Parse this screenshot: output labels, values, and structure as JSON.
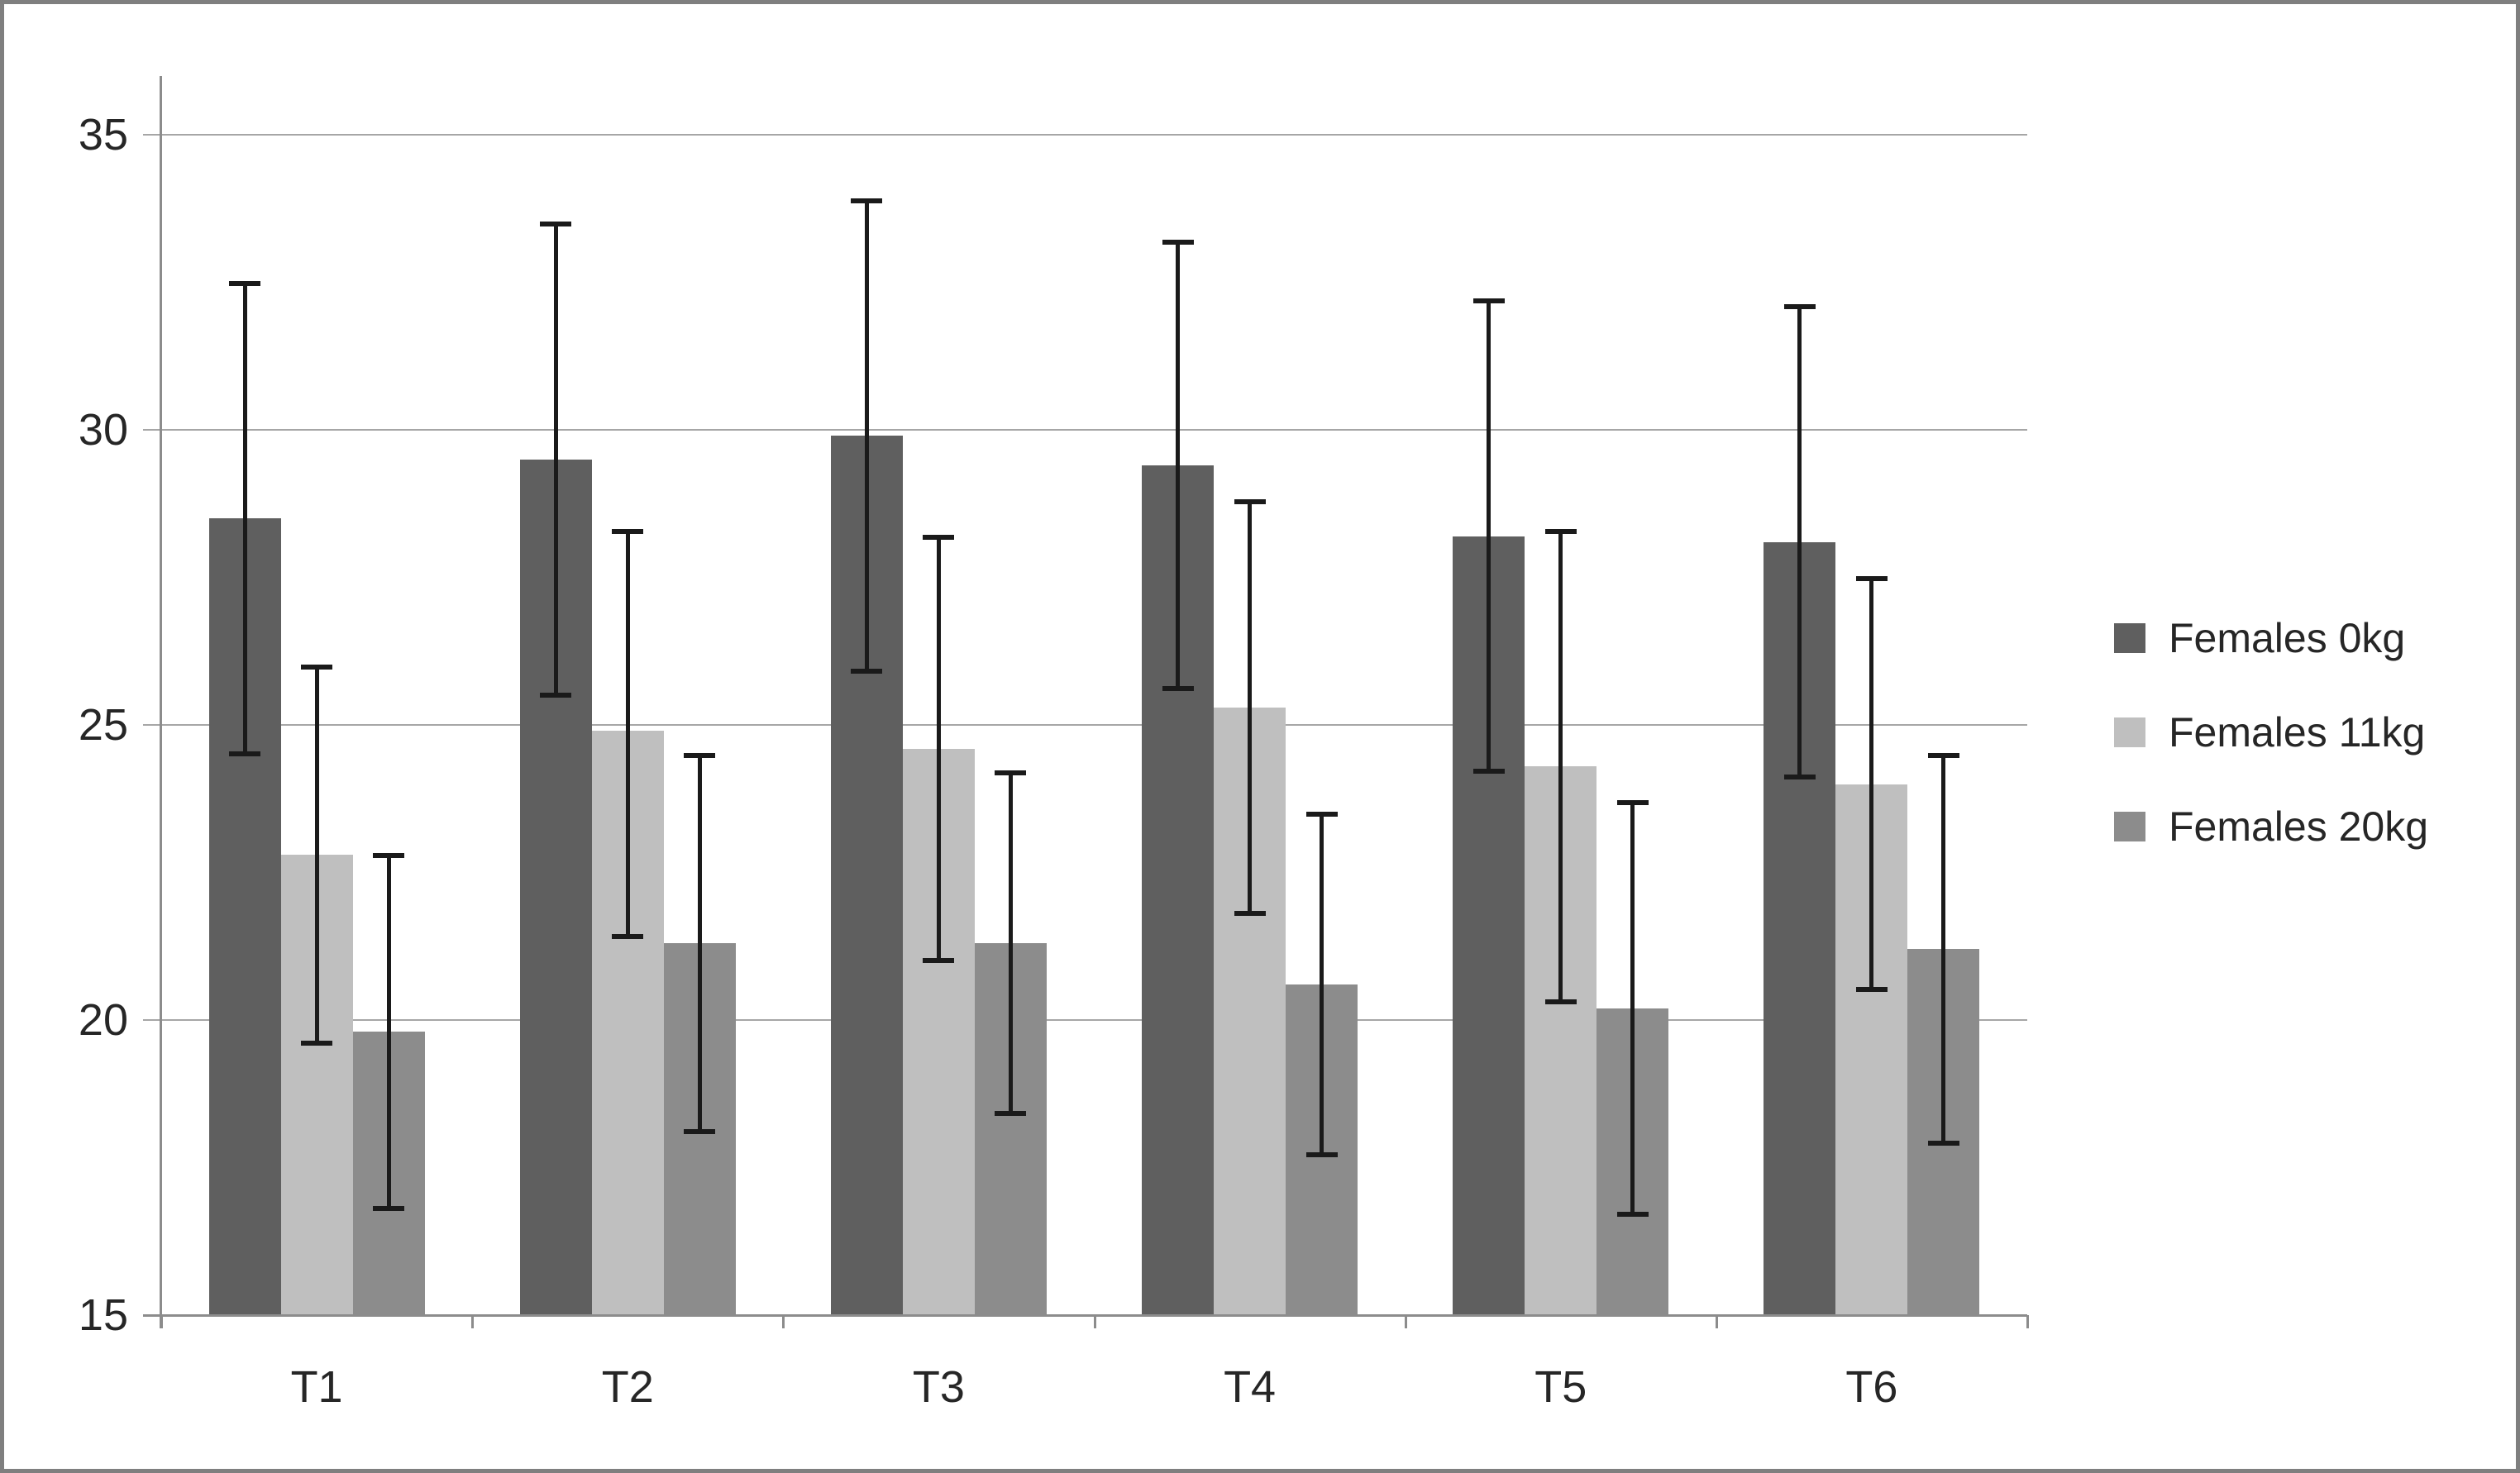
{
  "chart_data": {
    "type": "bar",
    "title": "",
    "xlabel": "",
    "ylabel": "",
    "categories": [
      "T1",
      "T2",
      "T3",
      "T4",
      "T5",
      "T6"
    ],
    "series": [
      {
        "name": "Females 0kg",
        "color": "#5f5f5f",
        "values": [
          28.5,
          29.5,
          29.9,
          29.4,
          28.2,
          28.1
        ],
        "error_low": [
          24.5,
          25.5,
          25.9,
          25.6,
          24.2,
          24.1
        ],
        "error_high": [
          32.5,
          33.5,
          33.9,
          33.2,
          32.2,
          32.1
        ]
      },
      {
        "name": "Females 11kg",
        "color": "#bfbfbf",
        "values": [
          22.8,
          24.9,
          24.6,
          25.3,
          24.3,
          24.0
        ],
        "error_low": [
          19.6,
          21.4,
          21.0,
          21.8,
          20.3,
          20.5
        ],
        "error_high": [
          26.0,
          28.3,
          28.2,
          28.8,
          28.3,
          27.5
        ]
      },
      {
        "name": "Females 20kg",
        "color": "#8c8c8c",
        "values": [
          19.8,
          21.3,
          21.3,
          20.6,
          20.2,
          21.2
        ],
        "error_low": [
          16.8,
          18.1,
          18.4,
          17.7,
          16.7,
          17.9
        ],
        "error_high": [
          22.8,
          24.5,
          24.2,
          23.5,
          23.7,
          24.5
        ]
      }
    ],
    "y_axis": {
      "min": 15,
      "max": 36,
      "tick_labels": [
        "15",
        "20",
        "25",
        "30",
        "35"
      ],
      "ticks": [
        15,
        20,
        25,
        30,
        35
      ]
    },
    "grid": true,
    "legend_position": "right",
    "error_bars": true
  },
  "styles": {
    "gridline_color": "#a6a6a6",
    "axis_color": "#8c8c8c",
    "error_bar_color": "#1a1a1a",
    "text_color": "#262626",
    "border_color": "#7f7f7f",
    "background": "#ffffff"
  },
  "layout_labels": {
    "legend_items": [
      "Females 0kg",
      "Females 11kg",
      "Females 20kg"
    ]
  }
}
